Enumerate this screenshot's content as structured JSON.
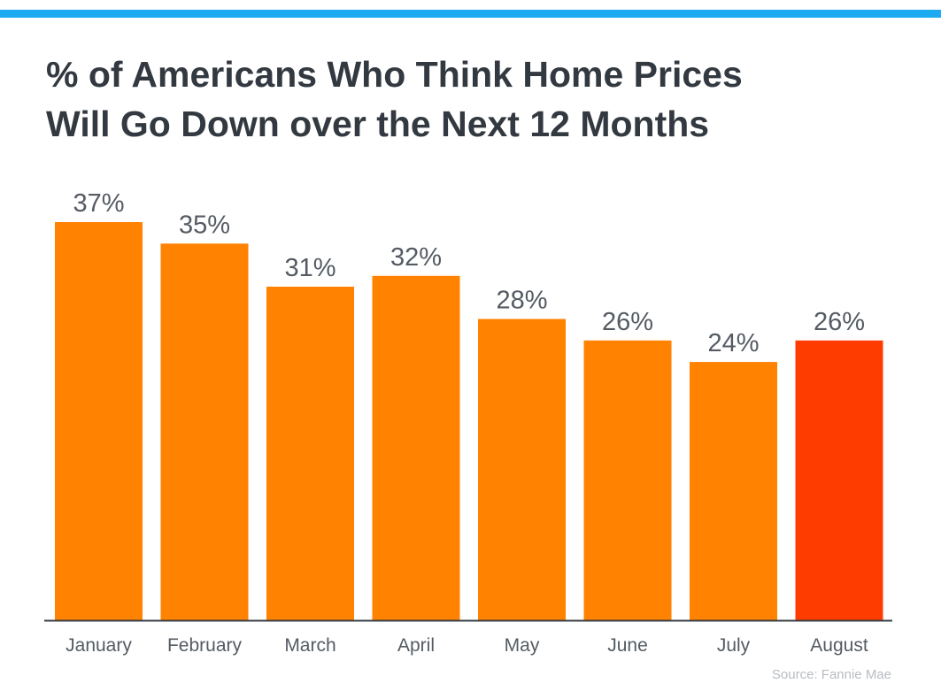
{
  "title_lines": [
    "% of Americans Who Think Home Prices",
    "Will Go Down over the Next 12 Months"
  ],
  "source": "Source: Fannie Mae",
  "colors": {
    "top_bar": "#1daaf0",
    "bar": "#ff8200",
    "bar_highlight": "#ff3c00",
    "title": "#333940",
    "label": "#555b63",
    "axis": "#3a3f45",
    "source": "#b8bcc2"
  },
  "chart_data": {
    "type": "bar",
    "title": "% of Americans Who Think Home Prices Will Go Down over the Next 12 Months",
    "categories": [
      "January",
      "February",
      "March",
      "April",
      "May",
      "June",
      "July",
      "August"
    ],
    "values": [
      37,
      35,
      31,
      32,
      28,
      26,
      24,
      26
    ],
    "value_labels": [
      "37%",
      "35%",
      "31%",
      "32%",
      "28%",
      "26%",
      "24%",
      "26%"
    ],
    "highlight_index": 7,
    "ylim": [
      0,
      37
    ],
    "grid": false,
    "legend": "none",
    "xlabel": "",
    "ylabel": ""
  }
}
